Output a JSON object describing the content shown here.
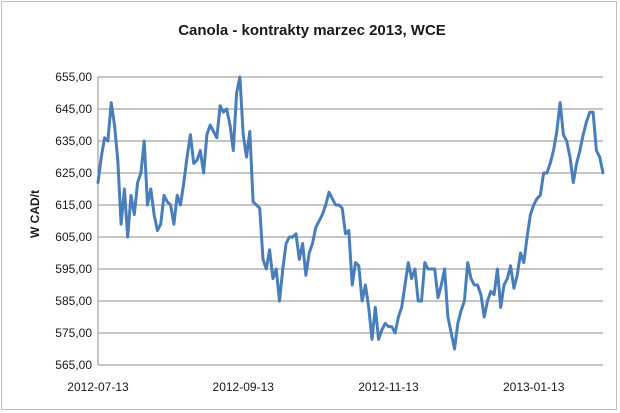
{
  "chart_data": {
    "type": "line",
    "title": "Canola - kontrakty marzec 2013, WCE",
    "xlabel": "",
    "ylabel": "W CAD/t",
    "ylim": [
      565,
      655
    ],
    "yticks": [
      "565,00",
      "575,00",
      "585,00",
      "595,00",
      "605,00",
      "615,00",
      "625,00",
      "635,00",
      "645,00",
      "655,00"
    ],
    "xticks": [
      "2012-07-13",
      "2012-09-13",
      "2012-11-13",
      "2013-01-13"
    ],
    "grid": "horizontal",
    "legend": "none",
    "line_color": "#4a7ebb",
    "series": [
      {
        "values": [
          622,
          630,
          636,
          635,
          647,
          640,
          629,
          609,
          620,
          605,
          618,
          612,
          622,
          625,
          635,
          615,
          620,
          612,
          607,
          609,
          618,
          616,
          615,
          609,
          618,
          615,
          622,
          630,
          637,
          628,
          629,
          632,
          625,
          637,
          640,
          638,
          636,
          646,
          644,
          645,
          640,
          632,
          650,
          655,
          637,
          630,
          638,
          616,
          615,
          614,
          598,
          595,
          601,
          592,
          595,
          585,
          595,
          603,
          605,
          605,
          606,
          598,
          603,
          593,
          600,
          603,
          608,
          610,
          612,
          615,
          619,
          617,
          615,
          615,
          614,
          606,
          607,
          590,
          597,
          596,
          585,
          590,
          583,
          573,
          583,
          573,
          576,
          578,
          577,
          577,
          575,
          580,
          583,
          590,
          597,
          592,
          595,
          585,
          585,
          597,
          595,
          595,
          595,
          586,
          590,
          595,
          580,
          575,
          570,
          578,
          582,
          585,
          597,
          592,
          590,
          590,
          587,
          580,
          585,
          588,
          587,
          595,
          583,
          590,
          592,
          596,
          589,
          593,
          600,
          597,
          605,
          612,
          615,
          617,
          618,
          625,
          625,
          628,
          632,
          638,
          647,
          637,
          635,
          630,
          622,
          628,
          632,
          637,
          641,
          644,
          644,
          632,
          630,
          625
        ]
      }
    ]
  }
}
